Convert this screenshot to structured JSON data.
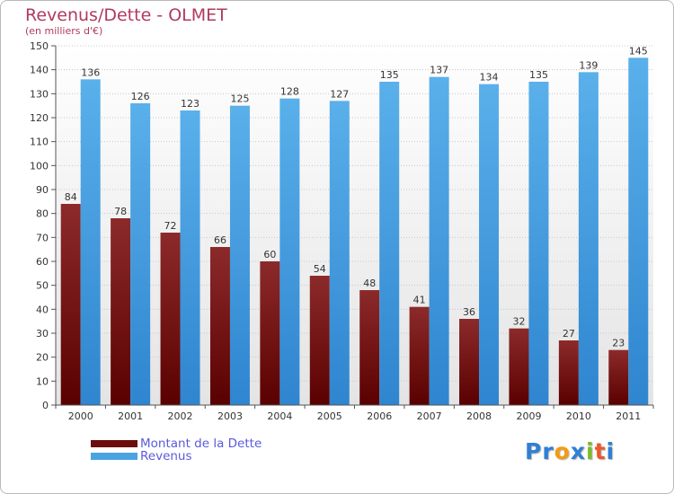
{
  "header": {
    "title": "Revenus/Dette - OLMET",
    "subtitle": "(en milliers d'€)"
  },
  "legend": {
    "items": [
      {
        "label": "Montant de la Dette",
        "color": "#6b0d0d"
      },
      {
        "label": "Revenus",
        "color": "#4aa3e3"
      }
    ]
  },
  "brand": {
    "name": "Proxiti",
    "letters": [
      "P",
      "r",
      "o",
      "x",
      "i",
      "t",
      "i"
    ],
    "letter_colors": [
      "#2f7fd6",
      "#2f7fd6",
      "#f39c12",
      "#2f7fd6",
      "#7cbd2a",
      "#e95a2c",
      "#2f7fd6"
    ]
  },
  "chart_data": {
    "type": "bar",
    "categories": [
      "2000",
      "2001",
      "2002",
      "2003",
      "2004",
      "2005",
      "2006",
      "2007",
      "2008",
      "2009",
      "2010",
      "2011"
    ],
    "series": [
      {
        "name": "Montant de la Dette",
        "values": [
          84,
          78,
          72,
          66,
          60,
          54,
          48,
          41,
          36,
          32,
          27,
          23
        ],
        "color_top": "#8c2a2a",
        "color_bottom": "#5a0000"
      },
      {
        "name": "Revenus",
        "values": [
          136,
          126,
          123,
          125,
          128,
          127,
          135,
          137,
          134,
          135,
          139,
          145
        ],
        "color_top": "#5ab0ea",
        "color_bottom": "#2f85cf"
      }
    ],
    "title": "Revenus/Dette - OLMET",
    "ylabel": "(en milliers d'€)",
    "xlabel": "",
    "ylim": [
      0,
      150
    ],
    "ytick_step": 10,
    "grid": true,
    "legend_position": "bottom-left"
  }
}
